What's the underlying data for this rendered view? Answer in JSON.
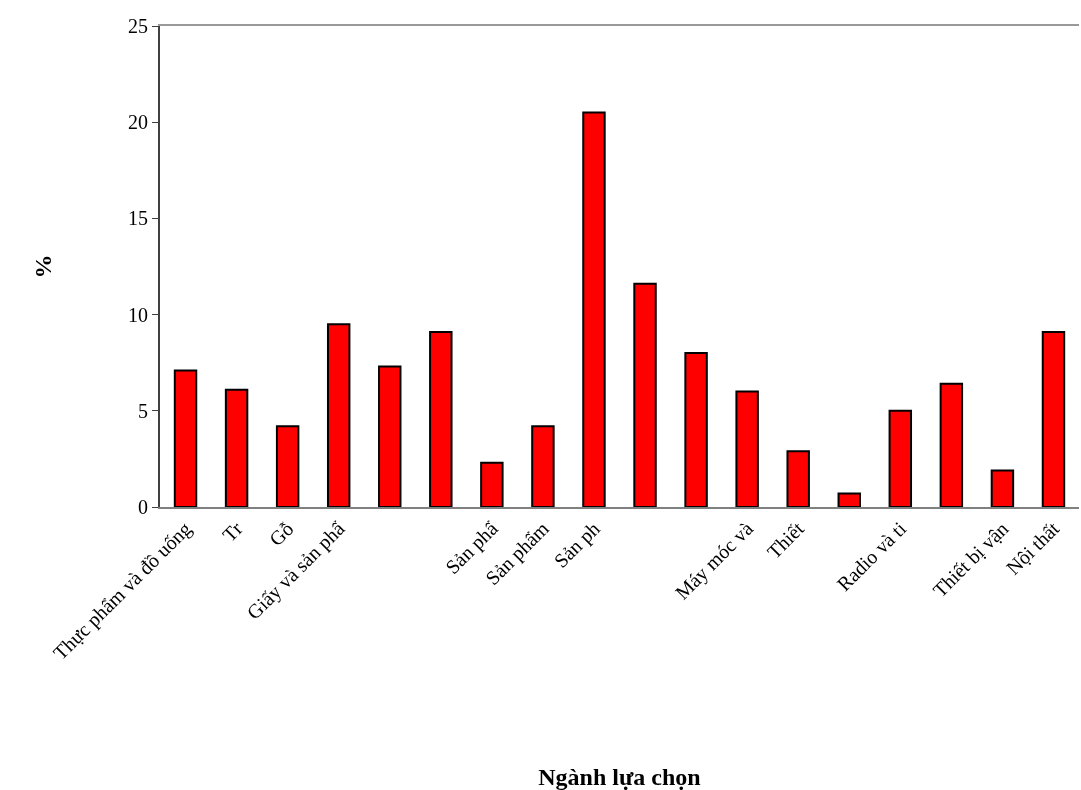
{
  "chart_data": {
    "type": "bar",
    "xlabel": "Ngành lựa chọn",
    "ylabel": "%",
    "categories": [
      "Thực phẩm và đồ uống",
      "Tr",
      "Gỗ",
      "Giấy và sản phẩ",
      null,
      null,
      "Sản phẩ",
      "Sản phẩm",
      "Sản ph",
      null,
      null,
      "Máy móc và",
      "Thiết",
      null,
      "Radio và ti",
      null,
      "Thiết bị vận",
      "Nội thất"
    ],
    "values": [
      7.1,
      6.1,
      4.2,
      9.5,
      7.3,
      9.1,
      2.3,
      4.2,
      20.5,
      11.6,
      8.0,
      6.0,
      2.9,
      0.7,
      5.0,
      6.4,
      1.9,
      9.1
    ],
    "color": "#ff0000",
    "ylim": [
      0,
      25
    ],
    "yticks": [
      0,
      5,
      10,
      15,
      20,
      25
    ]
  }
}
